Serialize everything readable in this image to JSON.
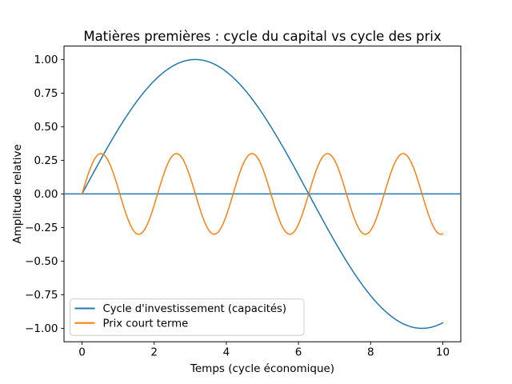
{
  "figure": {
    "background": "#ffffff",
    "frame_color": "#000000"
  },
  "chart_data": {
    "type": "line",
    "title": "Matières premières : cycle du capital vs cycle des prix",
    "xlabel": "Temps (cycle économique)",
    "ylabel": "Amplitude relative",
    "xlim": [
      -0.5,
      10.5
    ],
    "ylim": [
      -1.1,
      1.1
    ],
    "grid": false,
    "x_ticks": {
      "values": [
        0,
        2,
        4,
        6,
        8,
        10
      ],
      "labels": [
        "0",
        "2",
        "4",
        "6",
        "8",
        "10"
      ]
    },
    "y_ticks": {
      "values": [
        1.0,
        0.75,
        0.5,
        0.25,
        0.0,
        -0.25,
        -0.5,
        -0.75,
        -1.0
      ],
      "labels": [
        "1.00",
        "0.75",
        "0.50",
        "0.25",
        "0.00",
        "−0.25",
        "−0.50",
        "−0.75",
        "−1.00"
      ]
    },
    "reference_line": {
      "y": 0.0,
      "color": "#1f77b4",
      "line_width": 1.5,
      "spans_full_axes": true
    },
    "series": [
      {
        "name": "Cycle d'investissement (capacités)",
        "color": "#1f77b4",
        "line_width": 1.5,
        "formula": "y = 1.0 * sin(0.5 * x)",
        "amplitude": 1.0,
        "angular_frequency": 0.5,
        "phase": 0,
        "x_start": 0,
        "x_end": 10,
        "samples": 600,
        "key_points": [
          {
            "x": 0,
            "y": 0.0
          },
          {
            "x": 3.1416,
            "y": 1.0
          },
          {
            "x": 6.2832,
            "y": 0.0
          },
          {
            "x": 9.4248,
            "y": -1.0
          },
          {
            "x": 10,
            "y": -0.959
          }
        ]
      },
      {
        "name": "Prix court terme",
        "color": "#ff7f0e",
        "line_width": 1.5,
        "formula": "y = 0.3 * sin(3 * x)",
        "amplitude": 0.3,
        "angular_frequency": 3.0,
        "phase": 0,
        "x_start": 0,
        "x_end": 10,
        "samples": 600,
        "key_points": [
          {
            "x": 0,
            "y": 0.0
          },
          {
            "x": 0.5236,
            "y": 0.3
          },
          {
            "x": 1.5708,
            "y": -0.3
          },
          {
            "x": 2.618,
            "y": 0.3
          },
          {
            "x": 10,
            "y": -0.296
          }
        ]
      }
    ],
    "legend": {
      "position": "lower left",
      "face_color": "#ffffff",
      "edge_color": "#cccccc",
      "entries": [
        {
          "label": "Cycle d'investissement (capacités)",
          "color": "#1f77b4"
        },
        {
          "label": "Prix court terme",
          "color": "#ff7f0e"
        }
      ]
    }
  }
}
